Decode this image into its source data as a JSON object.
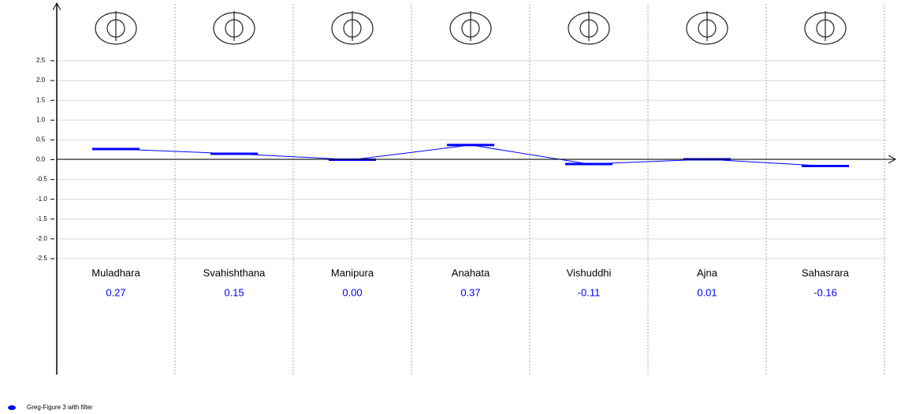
{
  "chart_data": {
    "type": "line",
    "categories": [
      "Muladhara",
      "Svahishthana",
      "Manipura",
      "Anahata",
      "Vishuddhi",
      "Ajna",
      "Sahasrara"
    ],
    "series": [
      {
        "name": "Greg-Figure 3 with filter",
        "color": "#0000ff",
        "values": [
          0.27,
          0.15,
          0.0,
          0.37,
          -0.11,
          0.01,
          -0.16
        ],
        "value_labels": [
          "0.27",
          "0.15",
          "0.00",
          "0.37",
          "-0.11",
          "0.01",
          "-0.16"
        ]
      }
    ],
    "ylim": [
      -2.5,
      2.5
    ],
    "yticks": [
      2.5,
      {
        "value": 2,
        "label": "2.0"
      },
      1.5,
      {
        "value": 1,
        "label": "1.0"
      },
      0.5,
      {
        "value": 0,
        "label": "0.0"
      },
      -0.5,
      {
        "value": -1,
        "label": "-1.0"
      },
      -1.5,
      {
        "value": -2,
        "label": "-2.0"
      },
      -2.5
    ],
    "grid": true
  }
}
